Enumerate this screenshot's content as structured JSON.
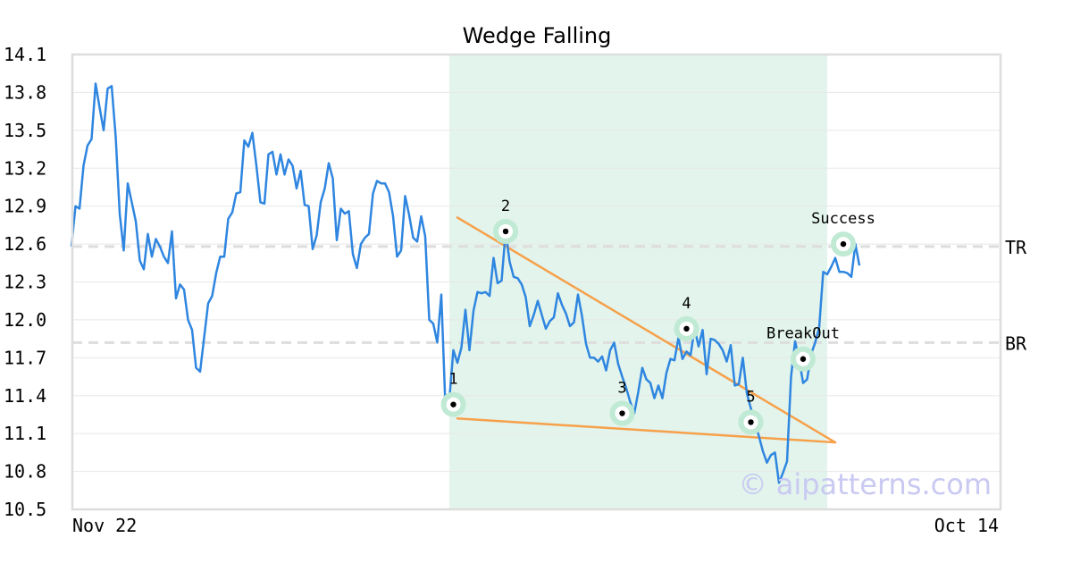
{
  "chart_data": {
    "type": "line",
    "title": "Wedge Falling",
    "xlabel": "",
    "ylabel": "",
    "ylim": [
      10.5,
      14.1
    ],
    "yticks": [
      "14.1",
      "13.8",
      "13.5",
      "13.2",
      "12.9",
      "12.6",
      "12.3",
      "12.0",
      "11.7",
      "11.4",
      "11.1",
      "10.8",
      "10.5"
    ],
    "xtick_labels": [
      "Nov 22",
      "Oct 14"
    ],
    "grid": true,
    "series": [
      {
        "color": "#2f86e0",
        "values": [
          12.58,
          12.9,
          12.88,
          13.22,
          13.38,
          13.43,
          13.87,
          13.68,
          13.5,
          13.83,
          13.85,
          13.45,
          12.84,
          12.55,
          13.08,
          12.93,
          12.78,
          12.47,
          12.4,
          12.68,
          12.5,
          12.64,
          12.58,
          12.5,
          12.45,
          12.7,
          12.17,
          12.28,
          12.24,
          12.0,
          11.92,
          11.62,
          11.59,
          11.86,
          12.13,
          12.19,
          12.37,
          12.5,
          12.5,
          12.8,
          12.85,
          13.0,
          13.01,
          13.42,
          13.37,
          13.48,
          13.22,
          12.93,
          12.92,
          13.31,
          13.33,
          13.15,
          13.31,
          13.15,
          13.27,
          13.22,
          13.04,
          13.18,
          12.91,
          12.9,
          12.56,
          12.67,
          12.93,
          13.04,
          13.24,
          13.12,
          12.63,
          12.88,
          12.84,
          12.86,
          12.52,
          12.41,
          12.6,
          12.65,
          12.68,
          13.0,
          13.1,
          13.08,
          13.08,
          13.01,
          12.82,
          12.5,
          12.55,
          12.98,
          12.83,
          12.65,
          12.62,
          12.82,
          12.66,
          12.0,
          11.97,
          11.82,
          12.2,
          11.33,
          11.37,
          11.76,
          11.66,
          11.78,
          12.08,
          11.76,
          12.07,
          12.22,
          12.21,
          12.22,
          12.19,
          12.49,
          12.29,
          12.31,
          12.7,
          12.46,
          12.34,
          12.33,
          12.28,
          12.18,
          11.95,
          12.04,
          12.15,
          12.04,
          11.93,
          11.99,
          12.02,
          12.21,
          12.12,
          12.05,
          11.95,
          11.98,
          12.2,
          12.03,
          11.81,
          11.7,
          11.7,
          11.67,
          11.71,
          11.6,
          11.76,
          11.82,
          11.65,
          11.55,
          11.46,
          11.35,
          11.26,
          11.43,
          11.62,
          11.53,
          11.5,
          11.38,
          11.48,
          11.38,
          11.58,
          11.69,
          11.68,
          11.86,
          11.69,
          11.75,
          11.72,
          11.93,
          11.79,
          11.92,
          11.57,
          11.85,
          11.84,
          11.81,
          11.76,
          11.67,
          11.8,
          11.48,
          11.49,
          11.7,
          11.42,
          11.3,
          11.19,
          11.08,
          10.96,
          10.87,
          10.93,
          10.95,
          10.71,
          10.79,
          10.88,
          11.55,
          11.83,
          11.69,
          11.5,
          11.53,
          11.73,
          11.82,
          11.94,
          12.38,
          12.36,
          12.42,
          12.49,
          12.38,
          12.38,
          12.37,
          12.34,
          12.6,
          12.43
        ]
      }
    ],
    "highlight_zone": {
      "x_start_index": 94,
      "x_end_index": 188,
      "color": "#e2f4ec"
    },
    "reference_lines": [
      {
        "label": "TR",
        "y": 12.58,
        "color": "#dddddd"
      },
      {
        "label": "BR",
        "y": 11.82,
        "color": "#dddddd"
      }
    ],
    "trend_lines": [
      {
        "color": "#f7a04a",
        "from": {
          "x_index": 96,
          "y": 12.81
        },
        "to": {
          "x_index": 190,
          "y": 11.03
        }
      },
      {
        "color": "#f7a04a",
        "from": {
          "x_index": 96,
          "y": 11.22
        },
        "to": {
          "x_index": 190,
          "y": 11.03
        }
      }
    ],
    "markers": [
      {
        "label": "1",
        "x_index": 95,
        "y": 11.33
      },
      {
        "label": "2",
        "x_index": 108,
        "y": 12.7
      },
      {
        "label": "3",
        "x_index": 137,
        "y": 11.26
      },
      {
        "label": "4",
        "x_index": 153,
        "y": 11.93
      },
      {
        "label": "5",
        "x_index": 169,
        "y": 11.19
      },
      {
        "label": "BreakOut",
        "x_index": 182,
        "y": 11.69
      },
      {
        "label": "Success",
        "x_index": 192,
        "y": 12.6
      }
    ],
    "marker_colors": {
      "ring": "#c0ead4",
      "dot": "#000000",
      "inner": "#ffffff"
    }
  },
  "watermark": "© aipatterns.com"
}
